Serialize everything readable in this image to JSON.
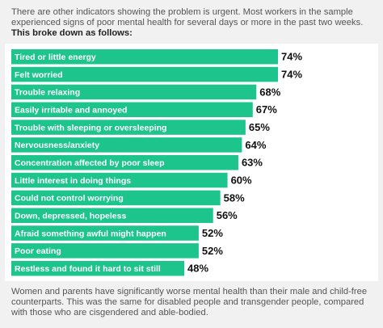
{
  "intro": "There are other indicators showing the problem is urgent. Most workers in the sample experienced signs of poor mental health for several days or more in the past two weeks.",
  "lead": "This broke down as follows:",
  "chart_data": {
    "type": "hbar",
    "color": "#1dc48c",
    "categories": [
      "Tired or little energy",
      "Felt worried",
      "Trouble relaxing",
      "Easily irritable and annoyed",
      "Trouble with sleeping or oversleeping",
      "Nervousness/anxiety",
      "Concentration affected by poor sleep",
      "Little interest in doing things",
      "Could not control worrying",
      "Down, depressed, hopeless",
      "Afraid something awful might happen",
      "Poor eating",
      "Restless and found it hard to sit still"
    ],
    "values": [
      74,
      74,
      68,
      67,
      65,
      64,
      63,
      60,
      58,
      56,
      52,
      52,
      48
    ],
    "value_labels": [
      "74%",
      "74%",
      "68%",
      "67%",
      "65%",
      "64%",
      "63%",
      "60%",
      "58%",
      "56%",
      "52%",
      "52%",
      "48%"
    ]
  },
  "outro": "Women and parents have significantly worse mental health than their male and child-free counterparts. This was the same for disabled people and transgender people, compared with those who are cisgendered and able-bodied."
}
